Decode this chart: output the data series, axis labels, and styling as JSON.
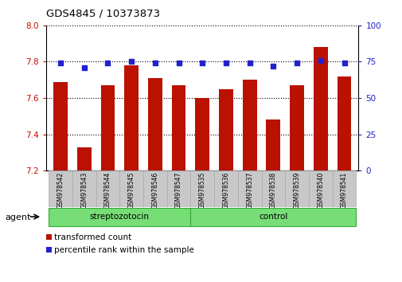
{
  "title": "GDS4845 / 10373873",
  "samples": [
    "GSM978542",
    "GSM978543",
    "GSM978544",
    "GSM978545",
    "GSM978546",
    "GSM978547",
    "GSM978535",
    "GSM978536",
    "GSM978537",
    "GSM978538",
    "GSM978539",
    "GSM978540",
    "GSM978541"
  ],
  "bar_values": [
    7.69,
    7.33,
    7.67,
    7.78,
    7.71,
    7.67,
    7.6,
    7.65,
    7.7,
    7.48,
    7.67,
    7.88,
    7.72
  ],
  "percentile_values": [
    74,
    71,
    74,
    75,
    74,
    74,
    74,
    74,
    74,
    72,
    74,
    76,
    74
  ],
  "bar_color": "#bb1100",
  "percentile_color": "#2222cc",
  "ylim_left": [
    7.2,
    8.0
  ],
  "ylim_right": [
    0,
    100
  ],
  "yticks_left": [
    7.2,
    7.4,
    7.6,
    7.8,
    8.0
  ],
  "yticks_right": [
    0,
    25,
    50,
    75,
    100
  ],
  "groups": [
    {
      "label": "streptozotocin",
      "start": 0,
      "end": 6
    },
    {
      "label": "control",
      "start": 6,
      "end": 13
    }
  ],
  "agent_label": "agent",
  "legend_bar_label": "transformed count",
  "legend_pct_label": "percentile rank within the sample",
  "group_color": "#77dd77",
  "group_edge_color": "#33aa33",
  "tick_label_bg": "#c8c8c8",
  "tick_label_edge": "#aaaaaa"
}
